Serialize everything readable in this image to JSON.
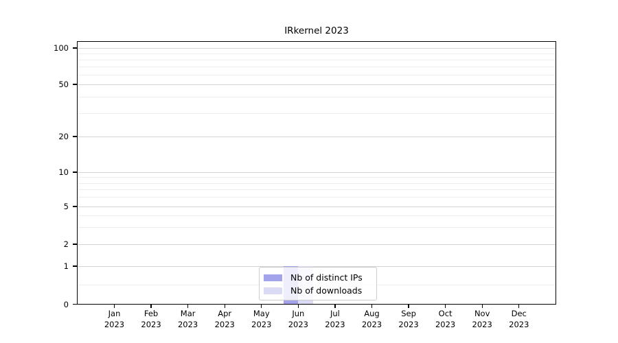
{
  "title": "IRkernel 2023",
  "chart_data": {
    "type": "bar",
    "title": "IRkernel 2023",
    "categories": [
      "Jan 2023",
      "Feb 2023",
      "Mar 2023",
      "Apr 2023",
      "May 2023",
      "Jun 2023",
      "Jul 2023",
      "Aug 2023",
      "Sep 2023",
      "Oct 2023",
      "Nov 2023",
      "Dec 2023"
    ],
    "series": [
      {
        "name": "Nb of distinct IPs",
        "color": "#a3a3ec",
        "values": [
          0,
          0,
          0,
          0,
          0,
          1,
          0,
          0,
          0,
          0,
          0,
          0
        ]
      },
      {
        "name": "Nb of downloads",
        "color": "#dbdbf6",
        "values": [
          0,
          0,
          0,
          0,
          0,
          1,
          0,
          0,
          0,
          0,
          0,
          0
        ]
      }
    ],
    "yscale": "symlog",
    "ylim": [
      0,
      140
    ],
    "y_major_ticks": [
      100,
      50,
      20,
      10,
      5,
      2,
      1,
      0
    ],
    "y_minor_ticks": [
      90,
      80,
      70,
      60,
      40,
      30,
      9,
      8,
      7,
      6,
      4,
      3,
      0.5
    ],
    "grid": true,
    "legend_position": "lower center"
  },
  "legend": {
    "items": [
      {
        "label": "Nb of distinct IPs",
        "color": "#a3a3ec"
      },
      {
        "label": "Nb of downloads",
        "color": "#dbdbf6"
      }
    ]
  }
}
